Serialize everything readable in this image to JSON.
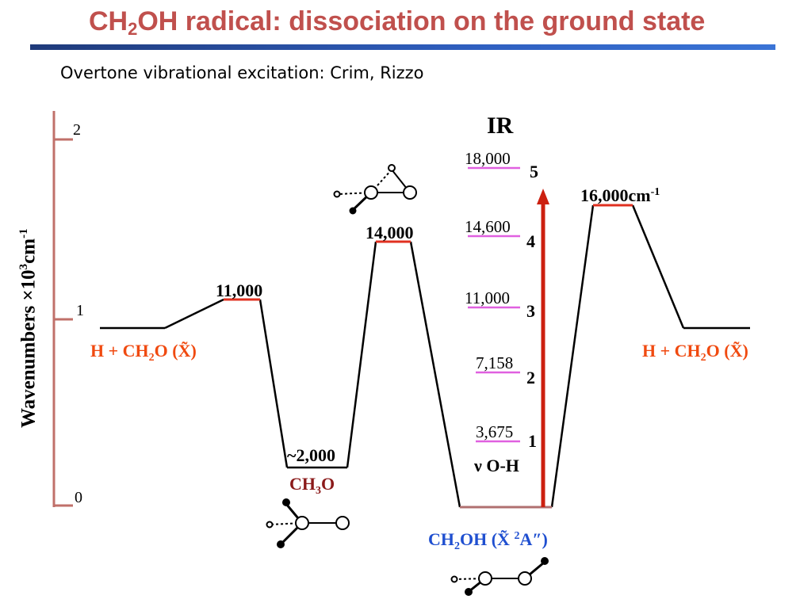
{
  "title": {
    "part1": "CH",
    "sub": "2",
    "part2": "OH radical: dissociation on the ground state"
  },
  "subtitle": "Overtone vibrational excitation: Crim, Rizzo",
  "y_axis": {
    "label_prefix": "Wavenumbers ×10",
    "label_sup1": "3",
    "label_mid": "cm",
    "label_sup2": "-1",
    "ticks": [
      "2",
      "1",
      "0"
    ]
  },
  "ir_label": "IR",
  "levels": {
    "ch2o_h_left": {
      "prefix": "H + CH",
      "sub": "2",
      "suffix": "O (X̃)"
    },
    "ts1": "11,000",
    "ch3o_well": "~2,000",
    "ch3o_label": {
      "prefix": "CH",
      "sub": "3",
      "suffix": "O"
    },
    "ts2": "14,000",
    "ch2oh_label": {
      "prefix": "CH",
      "sub": "2",
      "suffix": "OH (X̃ ",
      "sup": "2",
      "tail": "A″)"
    },
    "ts3": "16,000cm",
    "ts3_sup": "-1",
    "ch2o_h_right": {
      "prefix": "H + CH",
      "sub": "2",
      "suffix": "O (X̃)"
    }
  },
  "overtones": [
    {
      "value": "18,000",
      "n": "5"
    },
    {
      "value": "14,600",
      "n": "4"
    },
    {
      "value": "11,000",
      "n": "3"
    },
    {
      "value": "7,158",
      "n": "2"
    },
    {
      "value": "3,675",
      "n": "1"
    }
  ],
  "nu_oh_label": "ν O-H",
  "colors": {
    "title": "#c0504d",
    "axis": "#c0706a",
    "barrier": "#e03020",
    "overtone_line": "#e060e0",
    "arrow": "#cc2010",
    "ch3o_text": "#8b1a1a",
    "ch2oh_text": "#1f4fd0",
    "h_ch2o_text": "#f04a10",
    "ch2oh_level": "#b07070"
  }
}
